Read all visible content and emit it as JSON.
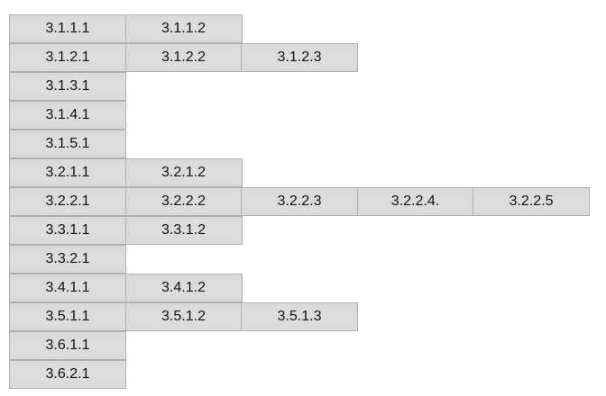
{
  "rows": [
    [
      "3.1.1.1",
      "3.1.1.2"
    ],
    [
      "3.1.2.1",
      "3.1.2.2",
      "3.1.2.3"
    ],
    [
      "3.1.3.1"
    ],
    [
      "3.1.4.1"
    ],
    [
      "3.1.5.1"
    ],
    [
      "3.2.1.1",
      "3.2.1.2"
    ],
    [
      "3.2.2.1",
      "3.2.2.2",
      "3.2.2.3",
      "3.2.2.4.",
      "3.2.2.5"
    ],
    [
      "3.3.1.1",
      "3.3.1.2"
    ],
    [
      "3.3.2.1"
    ],
    [
      "3.4.1.1",
      "3.4.1.2"
    ],
    [
      "3.5.1.1",
      "3.5.1.2",
      "3.5.1.3"
    ],
    [
      "3.6.1.1"
    ],
    [
      "3.6.2.1"
    ]
  ]
}
